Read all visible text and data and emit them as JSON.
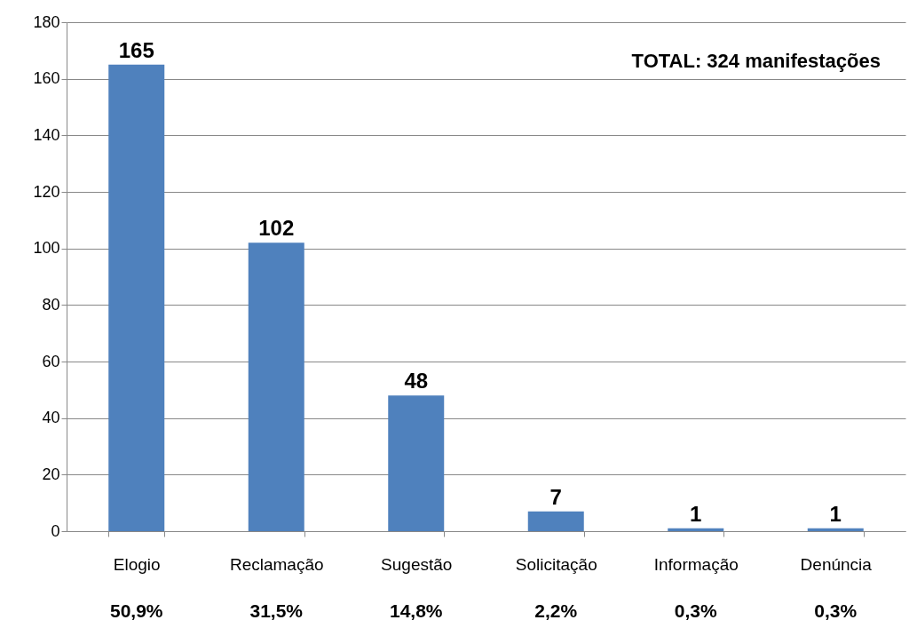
{
  "chart_data": {
    "type": "bar",
    "categories": [
      "Elogio",
      "Reclamação",
      "Sugestão",
      "Solicitação",
      "Informação",
      "Denúncia"
    ],
    "values": [
      165,
      102,
      48,
      7,
      1,
      1
    ],
    "color": "#4f81bd",
    "ylim": [
      0,
      180
    ],
    "yticks": [
      0,
      20,
      40,
      60,
      80,
      100,
      120,
      140,
      160,
      180
    ],
    "grid": "y",
    "data_labels": true,
    "annotations": [
      "TOTAL: 324 manifestações",
      "50,9%",
      "31,5%",
      "14,8%",
      "2,2%",
      "0,3%",
      "0,3%"
    ]
  }
}
